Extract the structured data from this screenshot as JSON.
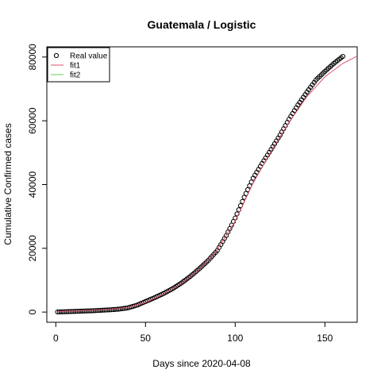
{
  "chart_data": {
    "type": "scatter",
    "title": "Guatemala / Logistic",
    "xlabel": "Days since 2020-04-08",
    "ylabel": "Cumulative Confirmed cases",
    "xlim": [
      -5,
      168
    ],
    "ylim": [
      -3200,
      83200
    ],
    "x_ticks": [
      0,
      50,
      100,
      150
    ],
    "y_ticks": [
      0,
      20000,
      40000,
      60000,
      80000
    ],
    "grid": false,
    "legend_position": "top-left",
    "legend": [
      {
        "label": "Real value",
        "kind": "point",
        "color": "#000000"
      },
      {
        "label": "fit1",
        "kind": "line",
        "color": "#DF536B"
      },
      {
        "label": "fit2",
        "kind": "line",
        "color": "#61D04F"
      }
    ],
    "series": [
      {
        "name": "Real value",
        "kind": "points",
        "color": "#000000",
        "points": [
          [
            1,
            30
          ],
          [
            5,
            100
          ],
          [
            10,
            200
          ],
          [
            15,
            300
          ],
          [
            20,
            400
          ],
          [
            25,
            550
          ],
          [
            30,
            700
          ],
          [
            35,
            900
          ],
          [
            40,
            1300
          ],
          [
            45,
            2100
          ],
          [
            50,
            3300
          ],
          [
            55,
            4500
          ],
          [
            60,
            5800
          ],
          [
            65,
            7300
          ],
          [
            70,
            9100
          ],
          [
            75,
            11200
          ],
          [
            80,
            13600
          ],
          [
            85,
            16200
          ],
          [
            90,
            19300
          ],
          [
            95,
            24000
          ],
          [
            100,
            29500
          ],
          [
            105,
            36000
          ],
          [
            110,
            42000
          ],
          [
            115,
            46600
          ],
          [
            120,
            51000
          ],
          [
            125,
            55500
          ],
          [
            130,
            60500
          ],
          [
            135,
            65000
          ],
          [
            140,
            69000
          ],
          [
            145,
            72800
          ],
          [
            150,
            75500
          ],
          [
            155,
            78000
          ],
          [
            160,
            80200
          ]
        ]
      },
      {
        "name": "fit1",
        "kind": "line",
        "color": "#DF536B",
        "points": [
          [
            1,
            150
          ],
          [
            10,
            350
          ],
          [
            20,
            600
          ],
          [
            30,
            900
          ],
          [
            40,
            1400
          ],
          [
            50,
            3000
          ],
          [
            60,
            5700
          ],
          [
            70,
            9000
          ],
          [
            80,
            13300
          ],
          [
            90,
            19600
          ],
          [
            100,
            28500
          ],
          [
            110,
            40500
          ],
          [
            120,
            50400
          ],
          [
            130,
            59500
          ],
          [
            140,
            67600
          ],
          [
            150,
            73800
          ],
          [
            160,
            78000
          ],
          [
            168,
            80300
          ]
        ]
      },
      {
        "name": "fit2",
        "kind": "line",
        "color": "#61D04F",
        "points": []
      }
    ]
  }
}
